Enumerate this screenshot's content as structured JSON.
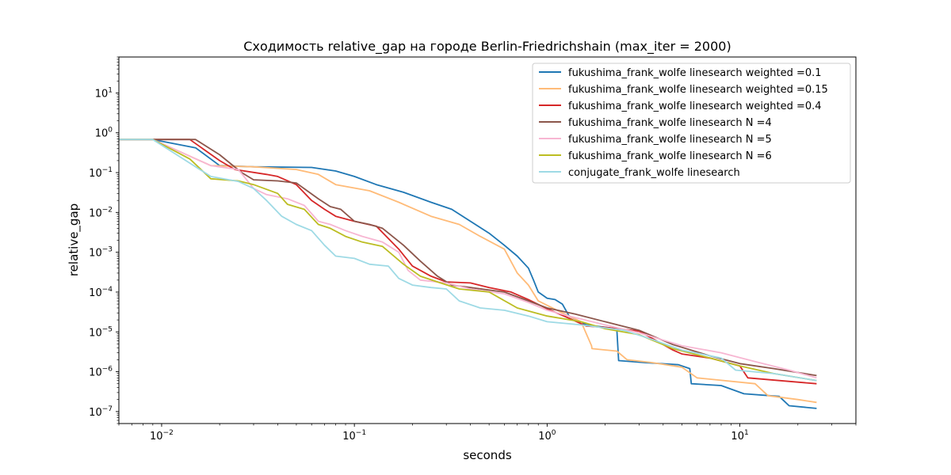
{
  "chart_data": {
    "type": "line",
    "title": "Сходимость relative_gap на городе Berlin-Friedrichshain  (max_iter = 2000)",
    "xlabel": "seconds",
    "ylabel": "relative_gap",
    "xscale": "log",
    "yscale": "log",
    "xlim": [
      0.006,
      40
    ],
    "ylim": [
      5e-08,
      80
    ],
    "xticks": [
      {
        "value": 0.01,
        "base": "10",
        "exp": "−2"
      },
      {
        "value": 0.1,
        "base": "10",
        "exp": "−1"
      },
      {
        "value": 1,
        "base": "10",
        "exp": "0"
      },
      {
        "value": 10,
        "base": "10",
        "exp": "1"
      }
    ],
    "yticks": [
      {
        "value": 1e-07,
        "base": "10",
        "exp": "−7"
      },
      {
        "value": 1e-06,
        "base": "10",
        "exp": "−6"
      },
      {
        "value": 1e-05,
        "base": "10",
        "exp": "−5"
      },
      {
        "value": 0.0001,
        "base": "10",
        "exp": "−4"
      },
      {
        "value": 0.001,
        "base": "10",
        "exp": "−3"
      },
      {
        "value": 0.01,
        "base": "10",
        "exp": "−2"
      },
      {
        "value": 0.1,
        "base": "10",
        "exp": "−1"
      },
      {
        "value": 1,
        "base": "10",
        "exp": "0"
      },
      {
        "value": 10,
        "base": "10",
        "exp": "1"
      }
    ],
    "grid": false,
    "legend_position": "upper right",
    "series": [
      {
        "name": "fukushima_frank_wolfe linesearch weighted =0.1",
        "color": "#1f77b4",
        "points": [
          [
            0.006,
            0.68
          ],
          [
            0.009,
            0.68
          ],
          [
            0.015,
            0.42
          ],
          [
            0.02,
            0.15
          ],
          [
            0.03,
            0.14
          ],
          [
            0.06,
            0.135
          ],
          [
            0.08,
            0.11
          ],
          [
            0.1,
            0.08
          ],
          [
            0.13,
            0.05
          ],
          [
            0.18,
            0.032
          ],
          [
            0.25,
            0.018
          ],
          [
            0.32,
            0.012
          ],
          [
            0.4,
            0.006
          ],
          [
            0.5,
            0.003
          ],
          [
            0.6,
            0.0015
          ],
          [
            0.7,
            0.0008
          ],
          [
            0.8,
            0.0004
          ],
          [
            0.85,
            0.0002
          ],
          [
            0.9,
            0.0001
          ],
          [
            1.0,
            7e-05
          ],
          [
            1.1,
            6.5e-05
          ],
          [
            1.2,
            5e-05
          ],
          [
            1.3,
            2.5e-05
          ],
          [
            1.6,
            1.5e-05
          ],
          [
            2.3,
            1.2e-05
          ],
          [
            2.35,
            1.9e-06
          ],
          [
            3.2,
            1.7e-06
          ],
          [
            4.8,
            1.5e-06
          ],
          [
            5.5,
            1.2e-06
          ],
          [
            5.6,
            5e-07
          ],
          [
            8.0,
            4.5e-07
          ],
          [
            10.5,
            2.8e-07
          ],
          [
            16.0,
            2.4e-07
          ],
          [
            18.0,
            1.4e-07
          ],
          [
            25.0,
            1.2e-07
          ]
        ]
      },
      {
        "name": "fukushima_frank_wolfe linesearch weighted =0.15",
        "color": "#ffbb78",
        "points": [
          [
            0.006,
            0.68
          ],
          [
            0.009,
            0.68
          ],
          [
            0.018,
            0.15
          ],
          [
            0.03,
            0.14
          ],
          [
            0.05,
            0.12
          ],
          [
            0.065,
            0.09
          ],
          [
            0.08,
            0.05
          ],
          [
            0.12,
            0.035
          ],
          [
            0.17,
            0.018
          ],
          [
            0.25,
            0.008
          ],
          [
            0.35,
            0.005
          ],
          [
            0.45,
            0.0025
          ],
          [
            0.6,
            0.0012
          ],
          [
            0.7,
            0.0003
          ],
          [
            0.8,
            0.00015
          ],
          [
            0.9,
            6e-05
          ],
          [
            1.2,
            3e-05
          ],
          [
            1.5,
            1.8e-05
          ],
          [
            1.7,
            4.5e-06
          ],
          [
            1.71,
            3.8e-06
          ],
          [
            2.3,
            3.3e-06
          ],
          [
            2.6,
            2e-06
          ],
          [
            3.5,
            1.7e-06
          ],
          [
            5.0,
            1.3e-06
          ],
          [
            6.0,
            7e-07
          ],
          [
            12.0,
            5e-07
          ],
          [
            14.0,
            2.5e-07
          ],
          [
            20.0,
            2e-07
          ],
          [
            25.0,
            1.7e-07
          ]
        ]
      },
      {
        "name": "fukushima_frank_wolfe linesearch weighted =0.4",
        "color": "#d62728",
        "points": [
          [
            0.006,
            0.68
          ],
          [
            0.014,
            0.68
          ],
          [
            0.02,
            0.2
          ],
          [
            0.024,
            0.12
          ],
          [
            0.035,
            0.09
          ],
          [
            0.04,
            0.08
          ],
          [
            0.05,
            0.05
          ],
          [
            0.06,
            0.02
          ],
          [
            0.07,
            0.012
          ],
          [
            0.08,
            0.008
          ],
          [
            0.1,
            0.006
          ],
          [
            0.13,
            0.0045
          ],
          [
            0.17,
            0.0012
          ],
          [
            0.2,
            0.00045
          ],
          [
            0.25,
            0.00025
          ],
          [
            0.3,
            0.00018
          ],
          [
            0.4,
            0.00017
          ],
          [
            0.5,
            0.00013
          ],
          [
            0.65,
            0.0001
          ],
          [
            0.8,
            6.5e-05
          ],
          [
            1.0,
            3.8e-05
          ],
          [
            1.3,
            2.2e-05
          ],
          [
            1.6,
            1.4e-05
          ],
          [
            2.0,
            1.3e-05
          ],
          [
            3.0,
            1.05e-05
          ],
          [
            4.5,
            3.5e-06
          ],
          [
            5.0,
            2.8e-06
          ],
          [
            7.0,
            2.2e-06
          ],
          [
            10.0,
            1.4e-06
          ],
          [
            11.0,
            7e-07
          ],
          [
            16.0,
            6e-07
          ],
          [
            25.0,
            5e-07
          ]
        ]
      },
      {
        "name": "fukushima_frank_wolfe linesearch N =4",
        "color": "#8c564b",
        "points": [
          [
            0.006,
            0.68
          ],
          [
            0.015,
            0.68
          ],
          [
            0.02,
            0.28
          ],
          [
            0.026,
            0.1
          ],
          [
            0.03,
            0.066
          ],
          [
            0.04,
            0.062
          ],
          [
            0.05,
            0.055
          ],
          [
            0.065,
            0.022
          ],
          [
            0.075,
            0.014
          ],
          [
            0.085,
            0.012
          ],
          [
            0.1,
            0.006
          ],
          [
            0.12,
            0.005
          ],
          [
            0.14,
            0.004
          ],
          [
            0.18,
            0.0015
          ],
          [
            0.22,
            0.0006
          ],
          [
            0.27,
            0.00025
          ],
          [
            0.32,
            0.00015
          ],
          [
            0.4,
            0.00013
          ],
          [
            0.6,
            0.0001
          ],
          [
            0.8,
            6e-05
          ],
          [
            1.0,
            4e-05
          ],
          [
            1.4,
            2.8e-05
          ],
          [
            2.0,
            1.8e-05
          ],
          [
            3.0,
            1.1e-05
          ],
          [
            4.5,
            4.8e-06
          ],
          [
            7.0,
            2.5e-06
          ],
          [
            10.0,
            1.6e-06
          ],
          [
            15.0,
            1.2e-06
          ],
          [
            25.0,
            8e-07
          ]
        ]
      },
      {
        "name": "fukushima_frank_wolfe linesearch N =5",
        "color": "#f7b6d2",
        "points": [
          [
            0.006,
            0.68
          ],
          [
            0.009,
            0.68
          ],
          [
            0.018,
            0.15
          ],
          [
            0.025,
            0.12
          ],
          [
            0.03,
            0.04
          ],
          [
            0.035,
            0.028
          ],
          [
            0.045,
            0.022
          ],
          [
            0.055,
            0.015
          ],
          [
            0.065,
            0.006
          ],
          [
            0.075,
            0.005
          ],
          [
            0.09,
            0.0035
          ],
          [
            0.11,
            0.0025
          ],
          [
            0.14,
            0.0018
          ],
          [
            0.17,
            0.001
          ],
          [
            0.19,
            0.00035
          ],
          [
            0.22,
            0.0002
          ],
          [
            0.3,
            0.00017
          ],
          [
            0.4,
            0.00012
          ],
          [
            0.6,
            9e-05
          ],
          [
            0.8,
            5.5e-05
          ],
          [
            1.0,
            3.5e-05
          ],
          [
            1.3,
            2.5e-05
          ],
          [
            2.0,
            1.5e-05
          ],
          [
            3.0,
            9.5e-06
          ],
          [
            5.0,
            4.5e-06
          ],
          [
            8.0,
            3e-06
          ],
          [
            12.0,
            1.8e-06
          ],
          [
            18.0,
            1.1e-06
          ],
          [
            25.0,
            7e-07
          ]
        ]
      },
      {
        "name": "fukushima_frank_wolfe linesearch N =6",
        "color": "#bcbd22",
        "points": [
          [
            0.006,
            0.68
          ],
          [
            0.009,
            0.68
          ],
          [
            0.014,
            0.22
          ],
          [
            0.018,
            0.07
          ],
          [
            0.025,
            0.062
          ],
          [
            0.03,
            0.05
          ],
          [
            0.04,
            0.03
          ],
          [
            0.045,
            0.016
          ],
          [
            0.055,
            0.012
          ],
          [
            0.065,
            0.005
          ],
          [
            0.075,
            0.004
          ],
          [
            0.09,
            0.0025
          ],
          [
            0.11,
            0.0018
          ],
          [
            0.14,
            0.0014
          ],
          [
            0.18,
            0.0005
          ],
          [
            0.22,
            0.00025
          ],
          [
            0.27,
            0.00018
          ],
          [
            0.35,
            0.00012
          ],
          [
            0.5,
            0.0001
          ],
          [
            0.7,
            4e-05
          ],
          [
            1.0,
            2.5e-05
          ],
          [
            1.5,
            1.8e-05
          ],
          [
            2.0,
            1.2e-05
          ],
          [
            3.0,
            8.5e-06
          ],
          [
            4.5,
            3.8e-06
          ],
          [
            7.0,
            2.2e-06
          ],
          [
            10.0,
            1.4e-06
          ],
          [
            15.0,
            9e-07
          ],
          [
            25.0,
            6e-07
          ]
        ]
      },
      {
        "name": "conjugate_frank_wolfe linesearch",
        "color": "#9edae5",
        "points": [
          [
            0.006,
            0.68
          ],
          [
            0.009,
            0.68
          ],
          [
            0.018,
            0.08
          ],
          [
            0.025,
            0.06
          ],
          [
            0.03,
            0.04
          ],
          [
            0.035,
            0.02
          ],
          [
            0.042,
            0.008
          ],
          [
            0.05,
            0.005
          ],
          [
            0.06,
            0.0035
          ],
          [
            0.07,
            0.0015
          ],
          [
            0.08,
            0.0008
          ],
          [
            0.1,
            0.0007
          ],
          [
            0.12,
            0.0005
          ],
          [
            0.15,
            0.00045
          ],
          [
            0.17,
            0.00022
          ],
          [
            0.2,
            0.00015
          ],
          [
            0.25,
            0.00013
          ],
          [
            0.3,
            0.00012
          ],
          [
            0.35,
            6e-05
          ],
          [
            0.45,
            4e-05
          ],
          [
            0.6,
            3.5e-05
          ],
          [
            0.8,
            2.5e-05
          ],
          [
            1.0,
            1.8e-05
          ],
          [
            1.5,
            1.5e-05
          ],
          [
            2.5,
            1.1e-05
          ],
          [
            3.5,
            6.5e-06
          ],
          [
            5.0,
            3.5e-06
          ],
          [
            8.0,
            2.2e-06
          ],
          [
            9.5,
            1.1e-06
          ],
          [
            15.0,
            9e-07
          ],
          [
            25.0,
            6e-07
          ]
        ]
      }
    ]
  }
}
